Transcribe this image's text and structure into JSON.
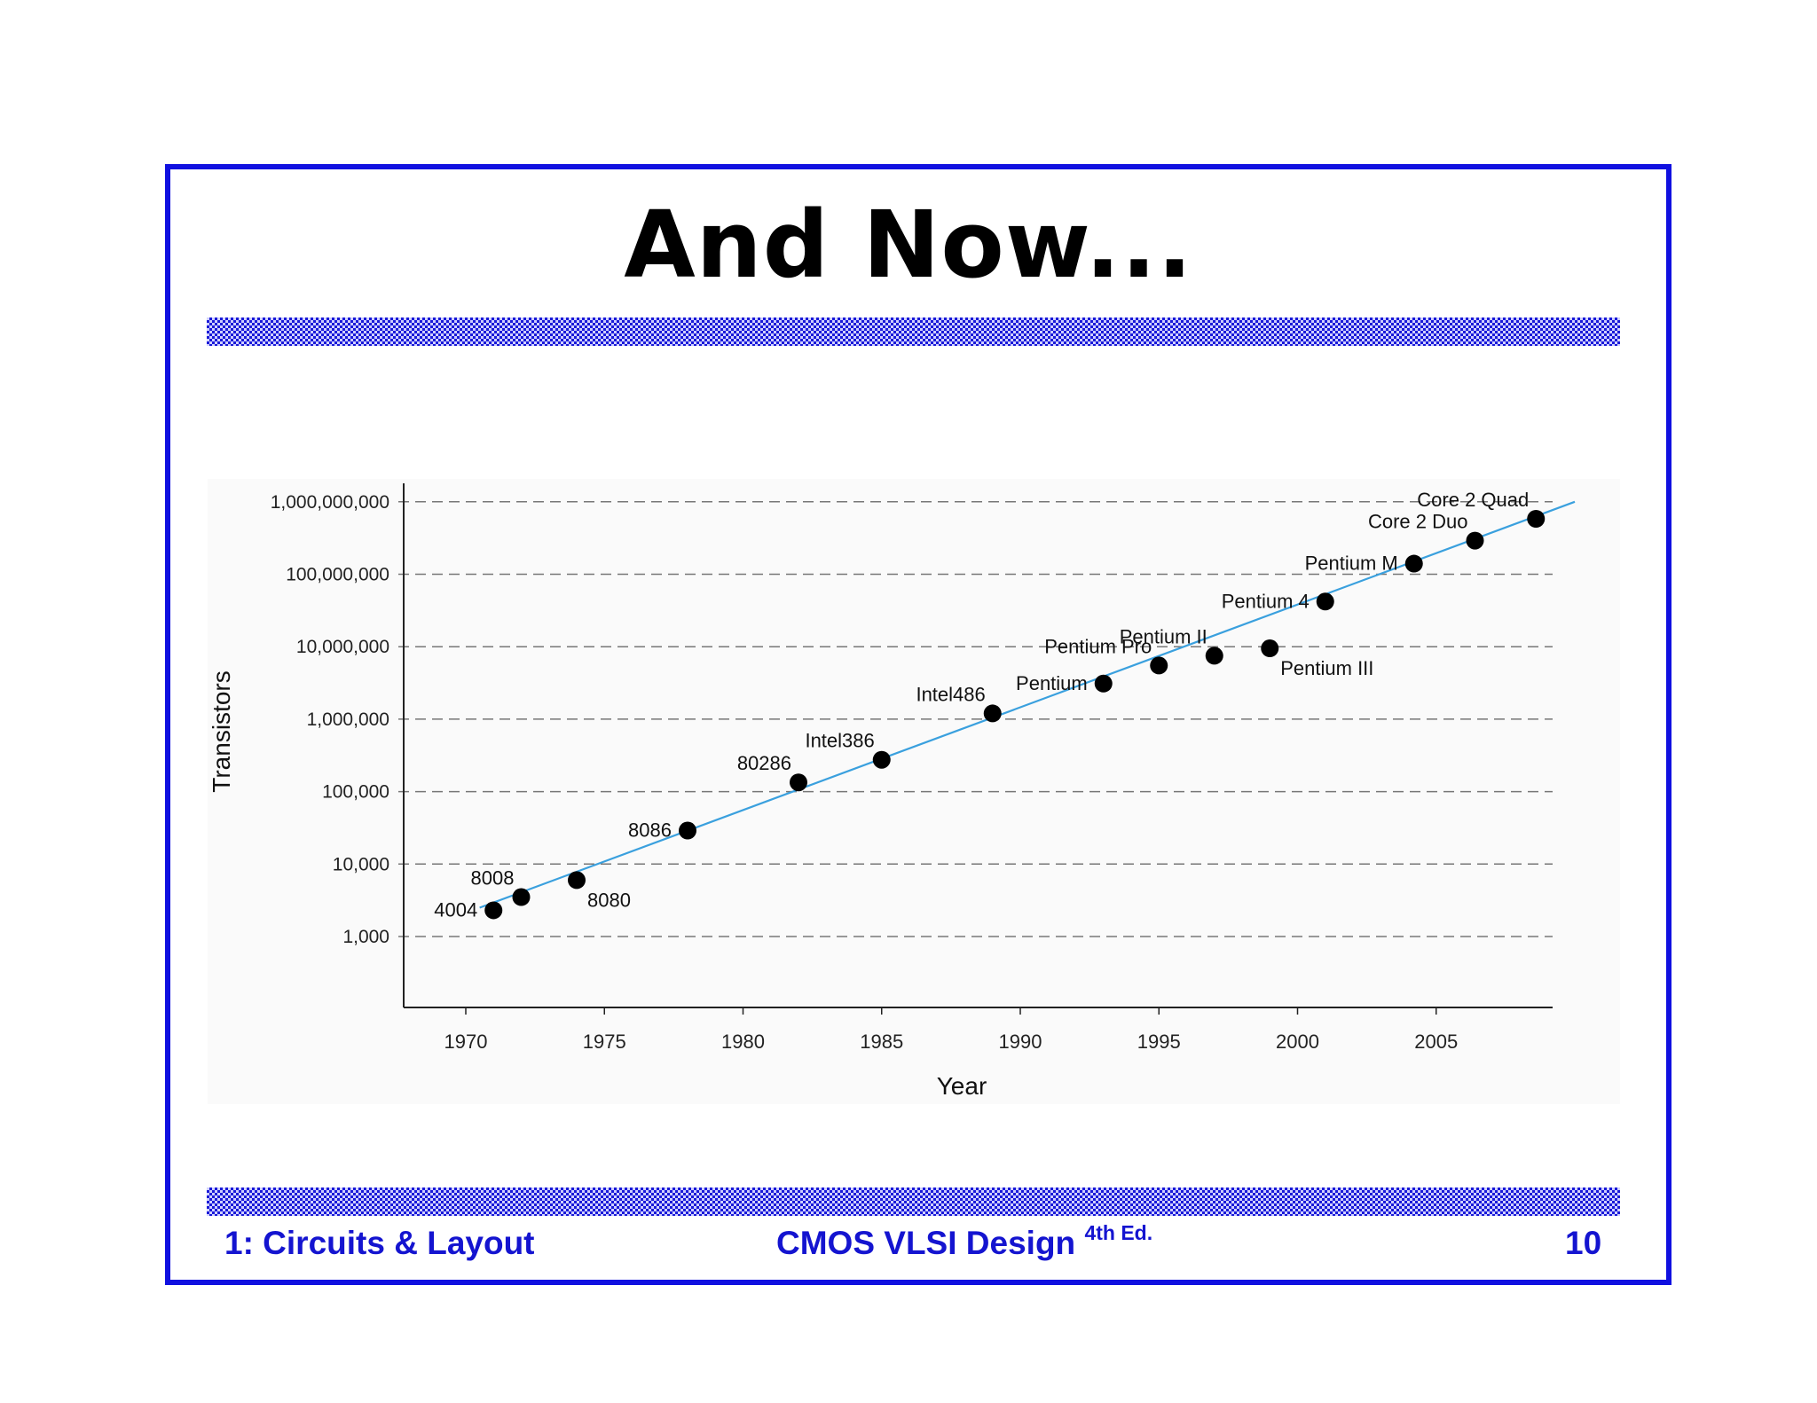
{
  "slide": {
    "title": "And Now...",
    "footer_left": "1: Circuits & Layout",
    "footer_center": "CMOS VLSI Design",
    "footer_center_sup": "4th Ed.",
    "footer_right": "10"
  },
  "colors": {
    "frame": "#1010e0",
    "footer_text": "#1414d0",
    "trend_line": "#3aa0de",
    "points": "#000000"
  },
  "chart_data": {
    "type": "scatter",
    "xlabel": "Year",
    "ylabel": "Transistors",
    "x_ticks": [
      1970,
      1975,
      1980,
      1985,
      1990,
      1995,
      2000,
      2005
    ],
    "xlim": [
      1968,
      2008.8
    ],
    "y_scale": "log",
    "y_ticks": [
      {
        "value": 1000,
        "label": "1,000"
      },
      {
        "value": 10000,
        "label": "10,000"
      },
      {
        "value": 100000,
        "label": "100,000"
      },
      {
        "value": 1000000,
        "label": "1,000,000"
      },
      {
        "value": 10000000,
        "label": "10,000,000"
      },
      {
        "value": 100000000,
        "label": "100,000,000"
      },
      {
        "value": 1000000000,
        "label": "1,000,000,000"
      }
    ],
    "ylim": [
      100,
      1000000000
    ],
    "grid": "horizontal-dashed",
    "points": [
      {
        "name": "4004",
        "year": 1971,
        "transistors": 2300,
        "label_side": "left"
      },
      {
        "name": "8008",
        "year": 1972,
        "transistors": 3500,
        "label_side": "above-left"
      },
      {
        "name": "8080",
        "year": 1974,
        "transistors": 6000,
        "label_side": "below-right"
      },
      {
        "name": "8086",
        "year": 1978,
        "transistors": 29000,
        "label_side": "left"
      },
      {
        "name": "80286",
        "year": 1982,
        "transistors": 134000,
        "label_side": "above-left"
      },
      {
        "name": "Intel386",
        "year": 1985,
        "transistors": 275000,
        "label_side": "above-left"
      },
      {
        "name": "Intel486",
        "year": 1989,
        "transistors": 1200000,
        "label_side": "above-left"
      },
      {
        "name": "Pentium",
        "year": 1993,
        "transistors": 3100000,
        "label_side": "left"
      },
      {
        "name": "Pentium Pro",
        "year": 1995,
        "transistors": 5500000,
        "label_side": "above-left"
      },
      {
        "name": "Pentium II",
        "year": 1997,
        "transistors": 7500000,
        "label_side": "above-left"
      },
      {
        "name": "Pentium III",
        "year": 1999,
        "transistors": 9500000,
        "label_side": "below-right"
      },
      {
        "name": "Pentium 4",
        "year": 2001,
        "transistors": 42000000,
        "label_side": "left"
      },
      {
        "name": "Pentium M",
        "year": 2004.2,
        "transistors": 140000000,
        "label_side": "left"
      },
      {
        "name": "Core 2 Duo",
        "year": 2006.4,
        "transistors": 291000000,
        "label_side": "above-left"
      },
      {
        "name": "Core 2 Quad",
        "year": 2008.6,
        "transistors": 582000000,
        "label_side": "above-left"
      }
    ],
    "trend_line": {
      "from": {
        "year": 1970.5,
        "transistors": 2500
      },
      "to": {
        "year": 2010,
        "transistors": 1000000000
      }
    }
  }
}
